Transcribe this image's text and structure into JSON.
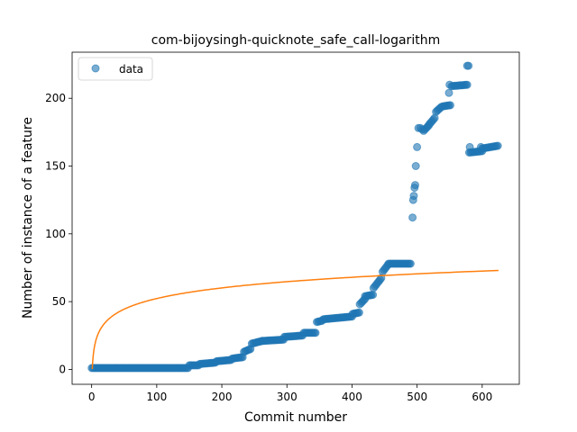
{
  "chart_data": {
    "type": "scatter",
    "title": "com-bijoysingh-quicknote_safe_call-logarithm",
    "xlabel": "Commit number",
    "ylabel": "Number of instance of a feature",
    "xlim": [
      -30,
      657
    ],
    "ylim": [
      -11,
      234
    ],
    "xticks": [
      0,
      100,
      200,
      300,
      400,
      500,
      600
    ],
    "yticks": [
      0,
      50,
      100,
      150,
      200
    ],
    "grid": false,
    "legend": {
      "placement": "top-left",
      "entries": [
        "data"
      ]
    },
    "colors": {
      "data": "#1f77b4",
      "fit": "#ff7f0e"
    },
    "series": [
      {
        "name": "data",
        "kind": "scatter",
        "segments": [
          {
            "x_from": 0,
            "x_to": 148,
            "step": 2,
            "y_from": 1,
            "y_to": 1
          },
          {
            "x_from": 150,
            "x_to": 165,
            "step": 2,
            "y_from": 3,
            "y_to": 3
          },
          {
            "x_from": 166,
            "x_to": 190,
            "step": 2,
            "y_from": 4,
            "y_to": 5
          },
          {
            "x_from": 192,
            "x_to": 215,
            "step": 2,
            "y_from": 6,
            "y_to": 7
          },
          {
            "x_from": 216,
            "x_to": 232,
            "step": 2,
            "y_from": 8,
            "y_to": 9
          },
          {
            "x_from": 234,
            "x_to": 244,
            "step": 2,
            "y_from": 13,
            "y_to": 15
          },
          {
            "x_from": 246,
            "x_to": 262,
            "step": 2,
            "y_from": 19,
            "y_to": 21
          },
          {
            "x_from": 263,
            "x_to": 295,
            "step": 2,
            "y_from": 21,
            "y_to": 22
          },
          {
            "x_from": 296,
            "x_to": 325,
            "step": 2,
            "y_from": 24,
            "y_to": 25
          },
          {
            "x_from": 326,
            "x_to": 345,
            "step": 2,
            "y_from": 27,
            "y_to": 27
          },
          {
            "x_from": 346,
            "x_to": 355,
            "step": 2,
            "y_from": 35,
            "y_to": 36
          },
          {
            "x_from": 356,
            "x_to": 400,
            "step": 2,
            "y_from": 37,
            "y_to": 39
          },
          {
            "x_from": 401,
            "x_to": 412,
            "step": 2,
            "y_from": 41,
            "y_to": 42
          },
          {
            "x_from": 412,
            "x_to": 420,
            "step": 2,
            "y_from": 48,
            "y_to": 52
          },
          {
            "x_from": 420,
            "x_to": 432,
            "step": 2,
            "y_from": 54,
            "y_to": 55
          },
          {
            "x_from": 433,
            "x_to": 446,
            "step": 2,
            "y_from": 60,
            "y_to": 68
          },
          {
            "x_from": 447,
            "x_to": 455,
            "step": 2,
            "y_from": 72,
            "y_to": 77
          },
          {
            "x_from": 456,
            "x_to": 490,
            "step": 2,
            "y_from": 78,
            "y_to": 78
          },
          {
            "x_from": 510,
            "x_to": 518,
            "step": 2,
            "y_from": 176,
            "y_to": 180
          },
          {
            "x_from": 519,
            "x_to": 528,
            "step": 2,
            "y_from": 181,
            "y_to": 186
          },
          {
            "x_from": 529,
            "x_to": 538,
            "step": 2,
            "y_from": 190,
            "y_to": 194
          },
          {
            "x_from": 539,
            "x_to": 552,
            "step": 2,
            "y_from": 194,
            "y_to": 195
          },
          {
            "x_from": 553,
            "x_to": 578,
            "step": 2,
            "y_from": 209,
            "y_to": 210
          },
          {
            "x_from": 580,
            "x_to": 600,
            "step": 2,
            "y_from": 160,
            "y_to": 161
          },
          {
            "x_from": 600,
            "x_to": 625,
            "step": 2,
            "y_from": 163,
            "y_to": 165
          }
        ],
        "points": [
          [
            493,
            112
          ],
          [
            494,
            125
          ],
          [
            495,
            128
          ],
          [
            496,
            134
          ],
          [
            497,
            136
          ],
          [
            498,
            150
          ],
          [
            500,
            164
          ],
          [
            502,
            178
          ],
          [
            505,
            178
          ],
          [
            508,
            177
          ],
          [
            549,
            204
          ],
          [
            550,
            210
          ],
          [
            577,
            224
          ],
          [
            579,
            224
          ],
          [
            581,
            164
          ],
          [
            598,
            164
          ]
        ]
      },
      {
        "name": "",
        "kind": "line",
        "function": "log",
        "x_from": 1,
        "x_to": 625,
        "y_at_x1": 0.2,
        "y_at_x_to": 73
      }
    ]
  }
}
